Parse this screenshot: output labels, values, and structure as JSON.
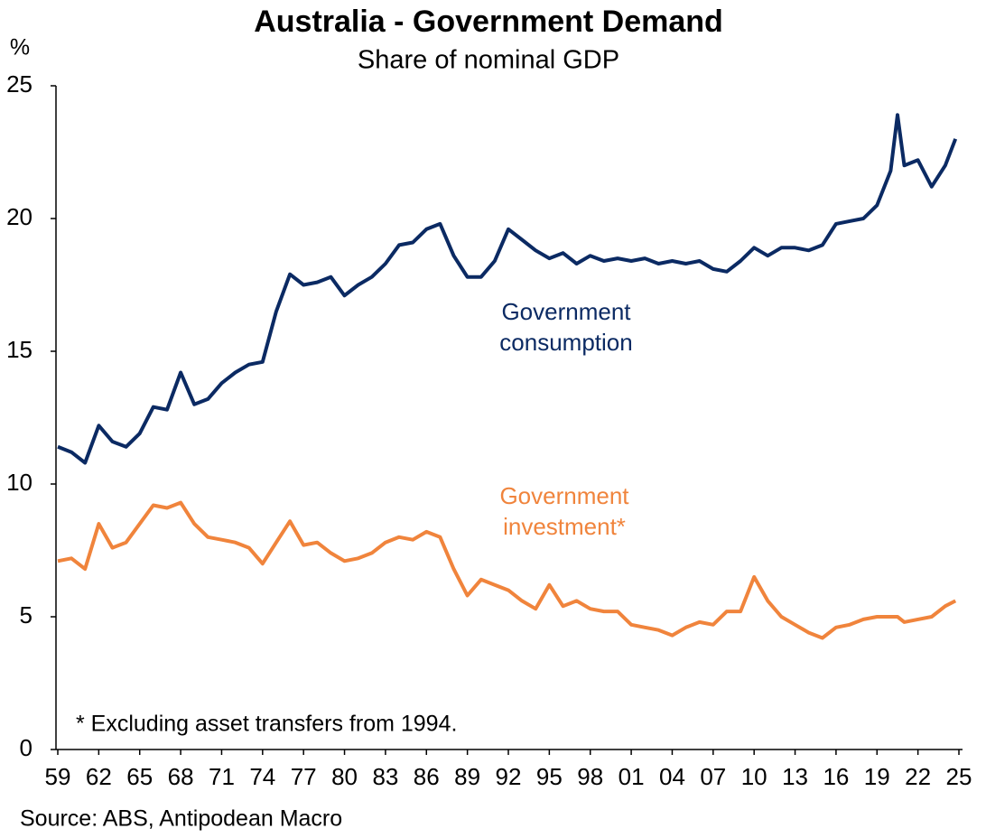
{
  "chart_data": {
    "type": "line",
    "title": "Australia - Government Demand",
    "subtitle": "Share of nominal GDP",
    "y_label": "%",
    "annotation": "* Excluding asset transfers from 1994.",
    "source": "Source: ABS, Antipodean Macro",
    "x": [
      1959,
      1960,
      1961,
      1962,
      1963,
      1964,
      1965,
      1966,
      1967,
      1968,
      1969,
      1970,
      1971,
      1972,
      1973,
      1974,
      1975,
      1976,
      1977,
      1978,
      1979,
      1980,
      1981,
      1982,
      1983,
      1984,
      1985,
      1986,
      1987,
      1988,
      1989,
      1990,
      1991,
      1992,
      1993,
      1994,
      1995,
      1996,
      1997,
      1998,
      1999,
      2000,
      2001,
      2002,
      2003,
      2004,
      2005,
      2006,
      2007,
      2008,
      2009,
      2010,
      2011,
      2012,
      2013,
      2014,
      2015,
      2016,
      2017,
      2018,
      2019,
      2020,
      2020.5,
      2021,
      2022,
      2023,
      2024,
      2024.75
    ],
    "series": [
      {
        "name": "Government consumption",
        "color": "#0b2a63",
        "values": [
          11.4,
          11.2,
          10.8,
          12.2,
          11.6,
          11.4,
          11.9,
          12.9,
          12.8,
          14.2,
          13.0,
          13.2,
          13.8,
          14.2,
          14.5,
          14.6,
          16.5,
          17.9,
          17.5,
          17.6,
          17.8,
          17.1,
          17.5,
          17.8,
          18.3,
          19.0,
          19.1,
          19.6,
          19.8,
          18.6,
          17.8,
          17.8,
          18.4,
          19.6,
          19.2,
          18.8,
          18.5,
          18.7,
          18.3,
          18.6,
          18.4,
          18.5,
          18.4,
          18.5,
          18.3,
          18.4,
          18.3,
          18.4,
          18.1,
          18.0,
          18.4,
          18.9,
          18.6,
          18.9,
          18.9,
          18.8,
          19.0,
          19.8,
          19.9,
          20.0,
          20.5,
          21.8,
          23.9,
          22.0,
          22.2,
          21.2,
          22.0,
          23.0
        ]
      },
      {
        "name": "Government investment*",
        "color": "#f0843c",
        "values": [
          7.1,
          7.2,
          6.8,
          8.5,
          7.6,
          7.8,
          8.5,
          9.2,
          9.1,
          9.3,
          8.5,
          8.0,
          7.9,
          7.8,
          7.6,
          7.0,
          7.8,
          8.6,
          7.7,
          7.8,
          7.4,
          7.1,
          7.2,
          7.4,
          7.8,
          8.0,
          7.9,
          8.2,
          8.0,
          6.8,
          5.8,
          6.4,
          6.2,
          6.0,
          5.6,
          5.3,
          6.2,
          5.4,
          5.6,
          5.3,
          5.2,
          5.2,
          4.7,
          4.6,
          4.5,
          4.3,
          4.6,
          4.8,
          4.7,
          5.2,
          5.2,
          6.5,
          5.6,
          5.0,
          4.7,
          4.4,
          4.2,
          4.6,
          4.7,
          4.9,
          5.0,
          5.0,
          5.0,
          4.8,
          4.9,
          5.0,
          5.4,
          5.6
        ]
      }
    ],
    "xlim": [
      1959,
      2025
    ],
    "xticks": [
      {
        "value": 1959,
        "label": "59"
      },
      {
        "value": 1962,
        "label": "62"
      },
      {
        "value": 1965,
        "label": "65"
      },
      {
        "value": 1968,
        "label": "68"
      },
      {
        "value": 1971,
        "label": "71"
      },
      {
        "value": 1974,
        "label": "74"
      },
      {
        "value": 1977,
        "label": "77"
      },
      {
        "value": 1980,
        "label": "80"
      },
      {
        "value": 1983,
        "label": "83"
      },
      {
        "value": 1986,
        "label": "86"
      },
      {
        "value": 1989,
        "label": "89"
      },
      {
        "value": 1992,
        "label": "92"
      },
      {
        "value": 1995,
        "label": "95"
      },
      {
        "value": 1998,
        "label": "98"
      },
      {
        "value": 2001,
        "label": "01"
      },
      {
        "value": 2004,
        "label": "04"
      },
      {
        "value": 2007,
        "label": "07"
      },
      {
        "value": 2010,
        "label": "10"
      },
      {
        "value": 2013,
        "label": "13"
      },
      {
        "value": 2016,
        "label": "16"
      },
      {
        "value": 2019,
        "label": "19"
      },
      {
        "value": 2022,
        "label": "22"
      },
      {
        "value": 2025,
        "label": "25"
      }
    ],
    "ylim": [
      0,
      25
    ],
    "yticks": [
      0,
      5,
      10,
      15,
      20,
      25
    ],
    "grid": false
  }
}
